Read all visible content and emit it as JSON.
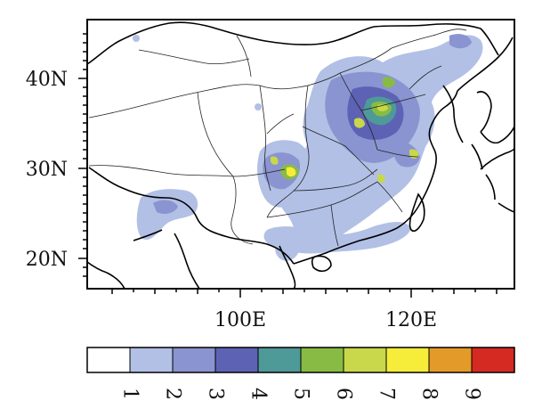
{
  "map": {
    "lat_labels": [
      "40N",
      "30N",
      "20N"
    ],
    "lon_labels": [
      "100E",
      "120E"
    ]
  },
  "colorbar": {
    "labels": [
      "1",
      "2",
      "3",
      "4",
      "5",
      "6",
      "7",
      "8",
      "9"
    ],
    "colors": [
      "#ffffff",
      "#b2c0e6",
      "#8a94d0",
      "#5e62b4",
      "#4e9a98",
      "#88bb44",
      "#c8d84a",
      "#f6ec3a",
      "#e49a28",
      "#d42a22"
    ]
  },
  "style": {
    "ocean": "#ffffff",
    "land": "#ffffff",
    "border_color": "#222222",
    "coast_color": "#000000"
  }
}
